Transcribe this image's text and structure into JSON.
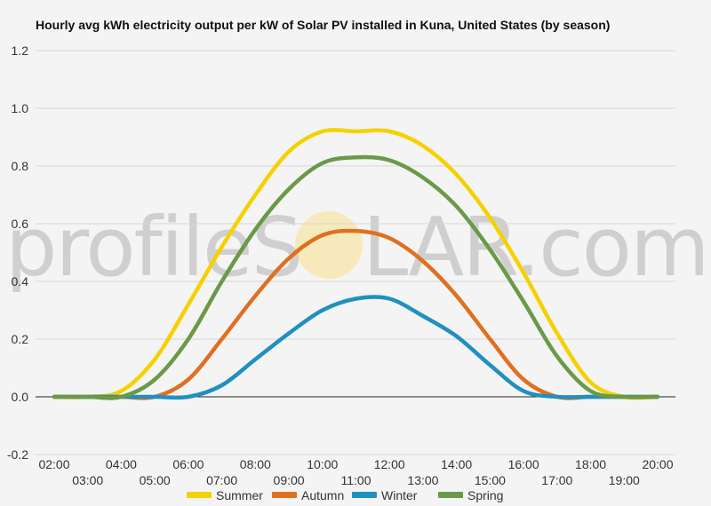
{
  "chart_data": {
    "type": "line",
    "title": "Hourly avg kWh electricity output per kW of Solar PV installed in Kuna, United States (by season)",
    "xlabel": "",
    "ylabel": "",
    "ylim": [
      -0.2,
      1.2
    ],
    "yticks": [
      "-0.2",
      "0.0",
      "0.2",
      "0.4",
      "0.6",
      "0.8",
      "1.0",
      "1.2"
    ],
    "grid": true,
    "legend_position": "bottom",
    "x": [
      "02:00",
      "03:00",
      "04:00",
      "05:00",
      "06:00",
      "07:00",
      "08:00",
      "09:00",
      "10:00",
      "11:00",
      "12:00",
      "13:00",
      "14:00",
      "15:00",
      "16:00",
      "17:00",
      "18:00",
      "19:00",
      "20:00"
    ],
    "series": [
      {
        "name": "Summer",
        "color": "#f5d100",
        "values": [
          0,
          0,
          0.02,
          0.13,
          0.32,
          0.52,
          0.7,
          0.85,
          0.92,
          0.92,
          0.92,
          0.87,
          0.77,
          0.62,
          0.43,
          0.22,
          0.05,
          0,
          0
        ]
      },
      {
        "name": "Autumn",
        "color": "#e07020",
        "values": [
          0,
          0,
          0,
          0,
          0.06,
          0.2,
          0.35,
          0.48,
          0.56,
          0.575,
          0.55,
          0.47,
          0.35,
          0.2,
          0.06,
          0,
          0,
          0,
          0
        ]
      },
      {
        "name": "Winter",
        "color": "#2090c0",
        "values": [
          0,
          0,
          0,
          0,
          0,
          0.04,
          0.13,
          0.22,
          0.3,
          0.34,
          0.34,
          0.28,
          0.21,
          0.11,
          0.02,
          0,
          0,
          0,
          0
        ]
      },
      {
        "name": "Spring",
        "color": "#6a9a48",
        "values": [
          0,
          0,
          0,
          0.06,
          0.2,
          0.4,
          0.58,
          0.72,
          0.81,
          0.83,
          0.82,
          0.76,
          0.66,
          0.51,
          0.33,
          0.14,
          0.02,
          0,
          0
        ]
      }
    ]
  },
  "watermark": {
    "text_left": "profileS",
    "text_right": "LAR.com"
  }
}
